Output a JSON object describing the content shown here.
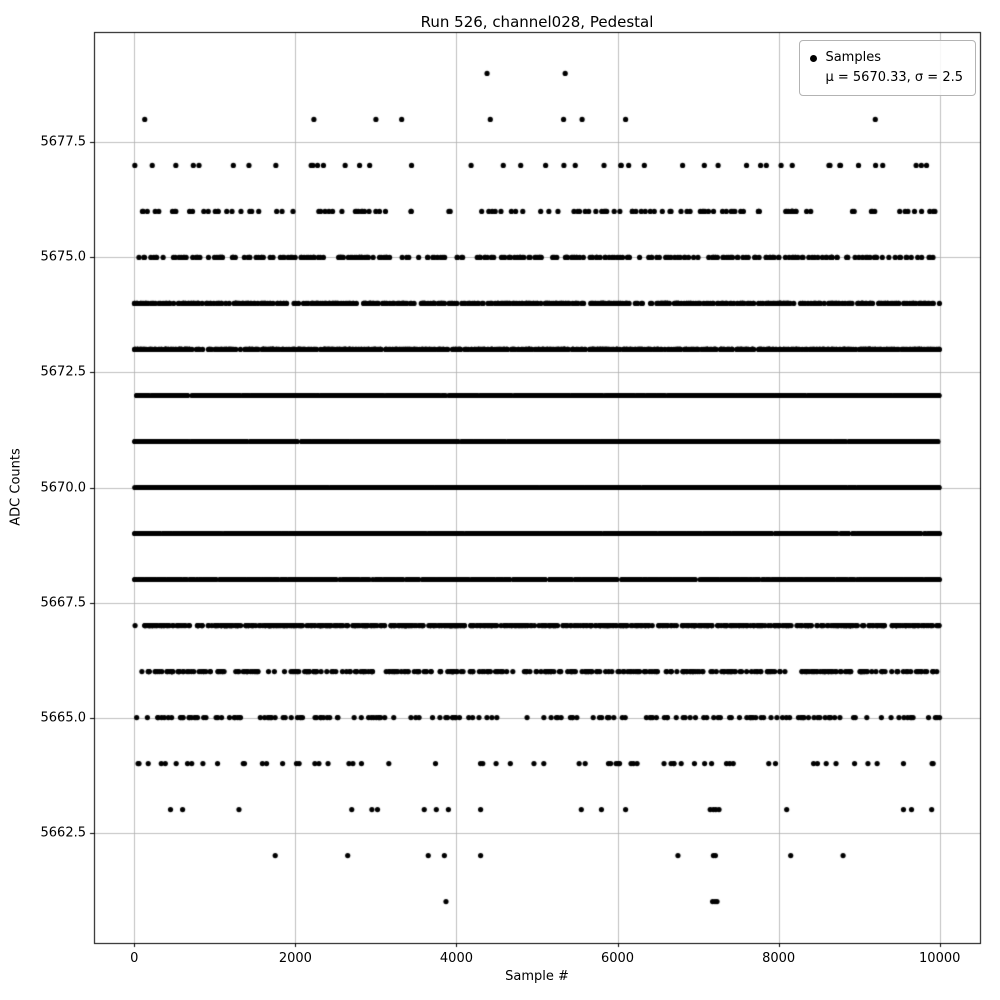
{
  "chart_data": {
    "type": "scatter",
    "title": "Run 526, channel028, Pedestal",
    "xlabel": "Sample #",
    "ylabel": "ADC Counts",
    "xlim": [
      -500,
      10500
    ],
    "ylim": [
      5660.1,
      5679.9
    ],
    "x_ticks": [
      0,
      2000,
      4000,
      6000,
      8000,
      10000
    ],
    "y_ticks": [
      5662.5,
      5665.0,
      5667.5,
      5670.0,
      5672.5,
      5675.0,
      5677.5
    ],
    "grid": true,
    "grid_color": "#b0b0b0",
    "marker_color": "#000000",
    "n_samples": 10000,
    "x_data_range": [
      0,
      9999
    ],
    "stats": {
      "mu": 5670.33,
      "sigma": 2.5
    },
    "legend": {
      "position": "upper-right",
      "entries": [
        {
          "label": "Samples",
          "marker": "dot"
        },
        {
          "label": "μ = 5670.33, σ = 2.5",
          "marker": "none"
        }
      ]
    },
    "adc_levels": [
      {
        "adc": 5661,
        "x": [
          3870,
          7180,
          7210,
          7235
        ]
      },
      {
        "adc": 5662,
        "x": [
          1750,
          2650,
          3650,
          3850,
          4300,
          6750,
          7190,
          7215,
          8150,
          8800
        ]
      },
      {
        "adc": 5663,
        "x": [
          450,
          600,
          1300,
          2700,
          2950,
          3020,
          3600,
          3750,
          3900,
          4300,
          5550,
          5800,
          6100,
          7150,
          7190,
          7220,
          7260,
          8100,
          9550,
          9650,
          9900
        ]
      },
      {
        "adc": 5664,
        "count": 65
      },
      {
        "adc": 5665,
        "count": 164
      },
      {
        "adc": 5666,
        "count": 356
      },
      {
        "adc": 5667,
        "count": 657
      },
      {
        "adc": 5668,
        "count": 1034
      },
      {
        "adc": 5669,
        "count": 1385
      },
      {
        "adc": 5670,
        "count": 1582
      },
      {
        "adc": 5671,
        "count": 1540
      },
      {
        "adc": 5672,
        "count": 1277
      },
      {
        "adc": 5673,
        "count": 902
      },
      {
        "adc": 5674,
        "count": 544
      },
      {
        "adc": 5675,
        "count": 279
      },
      {
        "adc": 5676,
        "count": 122
      },
      {
        "adc": 5677,
        "count": 45
      },
      {
        "adc": 5678,
        "x": [
          130,
          2230,
          3000,
          3320,
          4420,
          5330,
          5560,
          6100,
          9200
        ]
      },
      {
        "adc": 5679,
        "x": [
          4380,
          5350
        ]
      }
    ]
  }
}
